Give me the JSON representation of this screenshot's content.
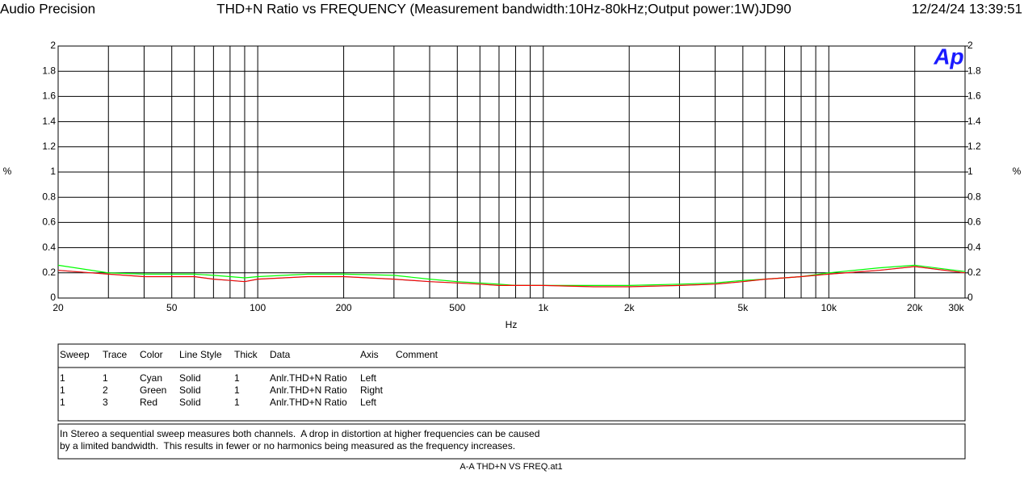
{
  "header": {
    "brand": "Audio Precision",
    "date": "12/24/24 13:39:51"
  },
  "chart_data": {
    "type": "line",
    "title": "THD+N Ratio vs FREQUENCY (Measurement bandwidth:10Hz-80kHz;Output power:1W)JD90",
    "xlabel": "Hz",
    "ylabel": "%",
    "y2label": "%",
    "logo": "Ap",
    "xscale": "log",
    "grid": true,
    "x": [
      20,
      30,
      40,
      50,
      60,
      70,
      80,
      90,
      100,
      150,
      200,
      300,
      400,
      500,
      600,
      700,
      800,
      900,
      1000,
      1500,
      2000,
      3000,
      4000,
      5000,
      6000,
      7000,
      8000,
      10000,
      15000,
      20000,
      30000
    ],
    "xlim": [
      20,
      30000
    ],
    "xticks": [
      20,
      50,
      100,
      200,
      500,
      {
        "value": 1000,
        "label": "1k"
      },
      {
        "value": 2000,
        "label": "2k"
      },
      {
        "value": 5000,
        "label": "5k"
      },
      {
        "value": 10000,
        "label": "10k"
      },
      {
        "value": 20000,
        "label": "20k"
      },
      {
        "value": 30000,
        "label": "30k"
      }
    ],
    "xminor": [
      30,
      40,
      60,
      70,
      80,
      90,
      300,
      400,
      600,
      700,
      800,
      900,
      3000,
      4000,
      6000,
      7000,
      8000,
      9000
    ],
    "ylim": [
      0,
      2
    ],
    "yticks": [
      0,
      0.2,
      0.4,
      0.6,
      0.8,
      1,
      1.2,
      1.4,
      1.6,
      1.8,
      2
    ],
    "y2lim": [
      0,
      2
    ],
    "y2ticks": [
      0,
      0.2,
      0.4,
      0.6,
      0.8,
      1,
      1.2,
      1.4,
      1.6,
      1.8,
      2
    ],
    "series": [
      {
        "color": "#00ffff",
        "values": [
          0.22,
          0.19,
          0.17,
          0.17,
          0.17,
          0.15,
          0.14,
          0.13,
          0.15,
          0.17,
          0.17,
          0.15,
          0.13,
          0.12,
          0.11,
          0.1,
          0.1,
          0.1,
          0.1,
          0.09,
          0.09,
          0.1,
          0.11,
          0.13,
          0.15,
          0.16,
          0.17,
          0.19,
          0.22,
          0.25,
          0.2
        ]
      },
      {
        "color": "#00ff00",
        "axis": "y2",
        "values": [
          0.26,
          0.2,
          0.19,
          0.19,
          0.19,
          0.18,
          0.17,
          0.16,
          0.17,
          0.19,
          0.19,
          0.18,
          0.15,
          0.13,
          0.12,
          0.11,
          0.1,
          0.1,
          0.1,
          0.1,
          0.1,
          0.11,
          0.12,
          0.14,
          0.15,
          0.16,
          0.17,
          0.2,
          0.24,
          0.26,
          0.21
        ]
      },
      {
        "color": "#ff0000",
        "values": [
          0.22,
          0.19,
          0.17,
          0.17,
          0.17,
          0.15,
          0.14,
          0.13,
          0.15,
          0.17,
          0.17,
          0.15,
          0.13,
          0.12,
          0.11,
          0.1,
          0.1,
          0.1,
          0.1,
          0.09,
          0.09,
          0.1,
          0.11,
          0.13,
          0.15,
          0.16,
          0.17,
          0.19,
          0.22,
          0.25,
          0.2
        ]
      }
    ]
  },
  "legend_table": {
    "columns": [
      "Sweep",
      "Trace",
      "Color",
      "Line Style",
      "Thick",
      "Data",
      "Axis",
      "Comment"
    ],
    "rows": [
      [
        "1",
        "1",
        "Cyan",
        "Solid",
        "1",
        "Anlr.THD+N Ratio",
        "Left"
      ],
      [
        "1",
        "2",
        "Green",
        "Solid",
        "1",
        "Anlr.THD+N Ratio",
        "Right"
      ],
      [
        "1",
        "3",
        "Red",
        "Solid",
        "1",
        "Anlr.THD+N Ratio",
        "Left"
      ]
    ]
  },
  "comment": [
    "In Stereo a sequential sweep measures both channels.  A drop in distortion at higher frequencies can be caused",
    "by a limited bandwidth.  This results in fewer or no harmonics being measured as the frequency increases."
  ],
  "footer": "A-A THD+N VS FREQ.at1"
}
